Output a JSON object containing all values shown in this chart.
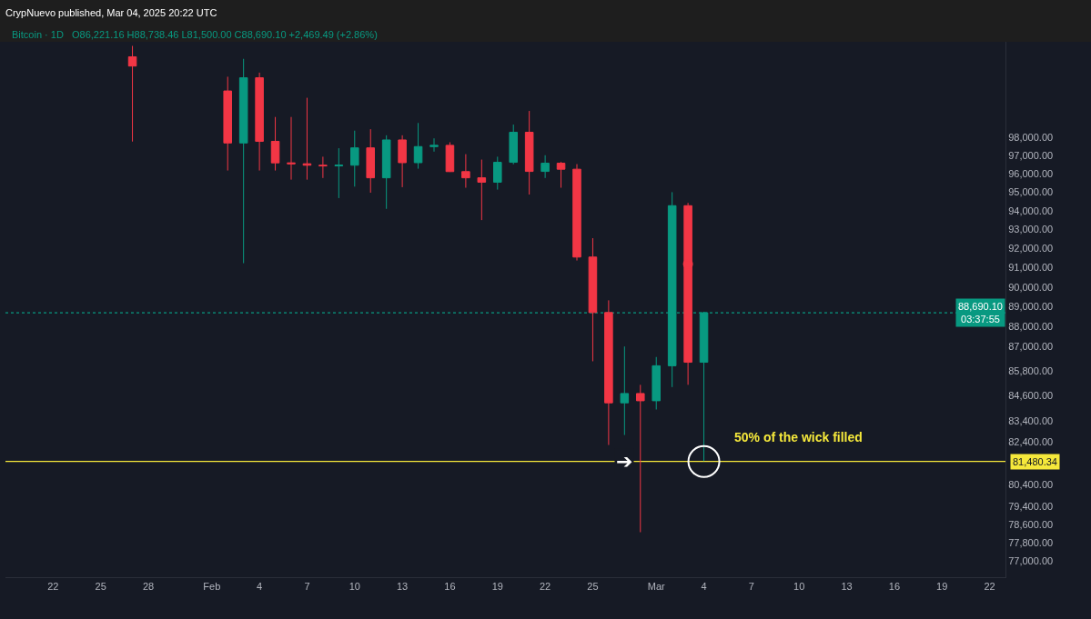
{
  "chart_data": {
    "type": "candlestick",
    "title": "CrypNuevo published, Mar 04, 2025 20:22 UTC",
    "subtitle": "Bitcoin · 1D   O86,221.16 H88,738.46 L81,500.00 C88,690.10 +2,469.49 (+2.86%)",
    "x": [
      "2025-01-27",
      "2025-02-02",
      "2025-02-03",
      "2025-02-04",
      "2025-02-05",
      "2025-02-06",
      "2025-02-07",
      "2025-02-08",
      "2025-02-09",
      "2025-02-10",
      "2025-02-11",
      "2025-02-12",
      "2025-02-13",
      "2025-02-14",
      "2025-02-15",
      "2025-02-16",
      "2025-02-17",
      "2025-02-18",
      "2025-02-19",
      "2025-02-20",
      "2025-02-21",
      "2025-02-22",
      "2025-02-23",
      "2025-02-24",
      "2025-02-25",
      "2025-02-26",
      "2025-02-27",
      "2025-02-28",
      "2025-03-01",
      "2025-03-02",
      "2025-03-03",
      "2025-03-04"
    ],
    "ohlc": [
      [
        102620,
        103260,
        97780,
        102080
      ],
      [
        100640,
        101460,
        96180,
        97700
      ],
      [
        97700,
        102500,
        91230,
        101400
      ],
      [
        101400,
        101700,
        96180,
        97790
      ],
      [
        97790,
        99160,
        96180,
        96600
      ],
      [
        96600,
        99160,
        95680,
        96550
      ],
      [
        96550,
        100250,
        95680,
        96470
      ],
      [
        96470,
        96940,
        95770,
        96430
      ],
      [
        96430,
        97410,
        94680,
        96470
      ],
      [
        96470,
        98390,
        95300,
        97430
      ],
      [
        97430,
        98470,
        94970,
        95780
      ],
      [
        95780,
        98130,
        94100,
        97870
      ],
      [
        97870,
        98130,
        95270,
        96610
      ],
      [
        96610,
        98820,
        96280,
        97500
      ],
      [
        97500,
        97960,
        97220,
        97570
      ],
      [
        97570,
        97740,
        96100,
        96120
      ],
      [
        96120,
        97080,
        95240,
        95780
      ],
      [
        95780,
        96780,
        93500,
        95540
      ],
      [
        95540,
        96940,
        95140,
        96630
      ],
      [
        96630,
        98730,
        96520,
        98300
      ],
      [
        98300,
        99500,
        94870,
        96130
      ],
      [
        96130,
        97020,
        95770,
        96580
      ],
      [
        96580,
        96650,
        95240,
        96250
      ],
      [
        96250,
        96530,
        91370,
        91550
      ],
      [
        91550,
        92540,
        86270,
        88700
      ],
      [
        88700,
        89320,
        82250,
        84250
      ],
      [
        84250,
        87000,
        82720,
        84700
      ],
      [
        84700,
        85120,
        78260,
        84350
      ],
      [
        84350,
        86480,
        83930,
        86050
      ],
      [
        86050,
        95000,
        85010,
        94270
      ],
      [
        94270,
        94420,
        85120,
        86221.16
      ],
      [
        86221.16,
        88738.46,
        81500,
        88690.1
      ]
    ],
    "colors": [
      "#f23645",
      "#f23645",
      "#089981",
      "#f23645",
      "#f23645",
      "#f23645",
      "#f23645",
      "#f23645",
      "#089981",
      "#089981",
      "#f23645",
      "#089981",
      "#f23645",
      "#089981",
      "#089981",
      "#f23645",
      "#f23645",
      "#f23645",
      "#089981",
      "#089981",
      "#f23645",
      "#089981",
      "#f23645",
      "#f23645",
      "#f23645",
      "#f23645",
      "#089981",
      "#f23645",
      "#089981",
      "#089981",
      "#f23645",
      "#089981"
    ],
    "series": [
      {
        "type": "scatter",
        "color": "#f23645",
        "x": [
          "2025-03-03"
        ],
        "values": [
          91190
        ]
      },
      {
        "type": "scatter",
        "color": "#ffffff",
        "x": [
          "2025-03-04"
        ],
        "values": [
          81480.34
        ]
      }
    ],
    "log": true,
    "grid": false,
    "marker": "circle",
    "xlim": [
      "2025-01-19",
      "2025-03-23"
    ],
    "xticks": [
      {
        "value": "2025-01-22",
        "label": "22"
      },
      {
        "value": "2025-01-25",
        "label": "25"
      },
      {
        "value": "2025-01-28",
        "label": "28"
      },
      {
        "value": "2025-02-01",
        "label": "Feb"
      },
      {
        "value": "2025-02-04",
        "label": "4"
      },
      {
        "value": "2025-02-07",
        "label": "7"
      },
      {
        "value": "2025-02-10",
        "label": "10"
      },
      {
        "value": "2025-02-13",
        "label": "13"
      },
      {
        "value": "2025-02-16",
        "label": "16"
      },
      {
        "value": "2025-02-19",
        "label": "19"
      },
      {
        "value": "2025-02-22",
        "label": "22"
      },
      {
        "value": "2025-02-25",
        "label": "25"
      },
      {
        "value": "2025-03-01",
        "label": "Mar"
      },
      {
        "value": "2025-03-04",
        "label": "4"
      },
      {
        "value": "2025-03-07",
        "label": "7"
      },
      {
        "value": "2025-03-10",
        "label": "10"
      },
      {
        "value": "2025-03-13",
        "label": "13"
      },
      {
        "value": "2025-03-16",
        "label": "16"
      },
      {
        "value": "2025-03-19",
        "label": "19"
      },
      {
        "value": "2025-03-22",
        "label": "22"
      }
    ],
    "ylim": [
      76280,
      103500
    ],
    "yticks": [
      {
        "value": 98000,
        "label": "98,000.00"
      },
      {
        "value": 97000,
        "label": "97,000.00"
      },
      {
        "value": 96000,
        "label": "96,000.00"
      },
      {
        "value": 95000,
        "label": "95,000.00"
      },
      {
        "value": 94000,
        "label": "94,000.00"
      },
      {
        "value": 93000,
        "label": "93,000.00"
      },
      {
        "value": 92000,
        "label": "92,000.00"
      },
      {
        "value": 91000,
        "label": "91,000.00"
      },
      {
        "value": 90000,
        "label": "90,000.00"
      },
      {
        "value": 89000,
        "label": "89,000.00"
      },
      {
        "value": 88000,
        "label": "88,000.00"
      },
      {
        "value": 87000,
        "label": "87,000.00"
      },
      {
        "value": 85800,
        "label": "85,800.00"
      },
      {
        "value": 84600,
        "label": "84,600.00"
      },
      {
        "value": 83400,
        "label": "83,400.00"
      },
      {
        "value": 82400,
        "label": "82,400.00"
      },
      {
        "value": 80400,
        "label": "80,400.00"
      },
      {
        "value": 79400,
        "label": "79,400.00"
      },
      {
        "value": 78600,
        "label": "78,600.00"
      },
      {
        "value": 77800,
        "label": "77,800.00"
      },
      {
        "value": 77000,
        "label": "77,000.00"
      }
    ],
    "ref_lines": [
      {
        "axis": "y",
        "value": 88690.1,
        "label": "88,690.10\n03:37:55",
        "color": "#089981",
        "line_style": "dotted"
      },
      {
        "axis": "y",
        "value": 81480.34,
        "label": "81,480.34",
        "color": "#f5e83b",
        "line_style": "solid"
      }
    ],
    "annotations": [
      "50% of the wick filled",
      {
        "text": "➔",
        "x": "2025-02-27",
        "y": 81480.34
      }
    ]
  }
}
